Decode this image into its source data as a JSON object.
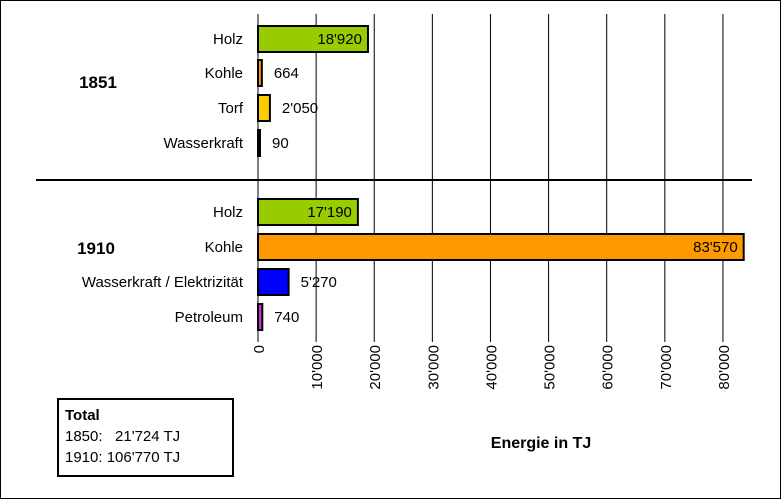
{
  "chart_data": {
    "type": "bar",
    "orientation": "horizontal",
    "xlabel": "Energie in TJ",
    "xlim": [
      0,
      85000
    ],
    "x_ticks": [
      {
        "value": 0,
        "label": "0"
      },
      {
        "value": 10000,
        "label": "10'000"
      },
      {
        "value": 20000,
        "label": "20'000"
      },
      {
        "value": 30000,
        "label": "30'000"
      },
      {
        "value": 40000,
        "label": "40'000"
      },
      {
        "value": 50000,
        "label": "50'000"
      },
      {
        "value": 60000,
        "label": "60'000"
      },
      {
        "value": 70000,
        "label": "70'000"
      },
      {
        "value": 80000,
        "label": "80'000"
      }
    ],
    "grid": "vertical",
    "groups": [
      {
        "label": "1851",
        "bars": [
          {
            "category": "Holz",
            "value": 18920,
            "label": "18'920",
            "color": "#99cc00",
            "label_position": "inside"
          },
          {
            "category": "Kohle",
            "value": 664,
            "label": "664",
            "color": "#ff9900",
            "label_position": "outside"
          },
          {
            "category": "Torf",
            "value": 2050,
            "label": "2'050",
            "color": "#ffcc00",
            "label_position": "outside"
          },
          {
            "category": "Wasserkraft",
            "value": 90,
            "label": "90",
            "color": "#ffffff",
            "label_position": "outside"
          }
        ]
      },
      {
        "label": "1910",
        "bars": [
          {
            "category": "Holz",
            "value": 17190,
            "label": "17'190",
            "color": "#99cc00",
            "label_position": "inside"
          },
          {
            "category": "Kohle",
            "value": 83570,
            "label": "83'570",
            "color": "#ff9900",
            "label_position": "inside"
          },
          {
            "category": "Wasserkraft / Elektrizität",
            "value": 5270,
            "label": "5'270",
            "color": "#0000ff",
            "label_position": "outside"
          },
          {
            "category": "Petroleum",
            "value": 740,
            "label": "740",
            "color": "#cc33cc",
            "label_position": "outside"
          }
        ]
      }
    ],
    "totals_box": {
      "title": "Total",
      "lines": [
        "1850:   21'724 TJ",
        "1910: 106'770 TJ"
      ]
    }
  }
}
